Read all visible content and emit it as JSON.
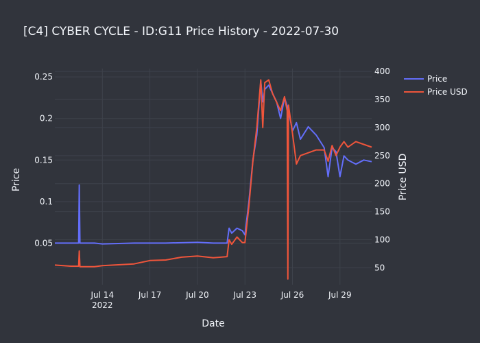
{
  "chart_data": {
    "type": "line",
    "title": "[C4] CYBER CYCLE - ID:G11 Price History - 2022-07-30",
    "xlabel": "Date",
    "ylabel": "Price",
    "y2label": "Price USD",
    "xlim": [
      "2022-07-11",
      "2022-07-31"
    ],
    "ylim": [
      0.0,
      0.26
    ],
    "y2lim": [
      20,
      405
    ],
    "x_ticks": [
      {
        "date": "2022-07-14",
        "label": "Jul 14",
        "sublabel": "2022"
      },
      {
        "date": "2022-07-17",
        "label": "Jul 17"
      },
      {
        "date": "2022-07-20",
        "label": "Jul 20"
      },
      {
        "date": "2022-07-23",
        "label": "Jul 23"
      },
      {
        "date": "2022-07-26",
        "label": "Jul 26"
      },
      {
        "date": "2022-07-29",
        "label": "Jul 29"
      }
    ],
    "y_ticks": [
      0.05,
      0.1,
      0.15,
      0.2,
      0.25
    ],
    "y_tick_labels": [
      "0.05",
      "0.1",
      "0.15",
      "0.2",
      "0.25"
    ],
    "y2_ticks": [
      50,
      100,
      150,
      200,
      250,
      300,
      350,
      400
    ],
    "y2_tick_labels": [
      "50",
      "100",
      "150",
      "200",
      "250",
      "300",
      "350",
      "400"
    ],
    "legend_position": "top-right",
    "grid": true,
    "series": [
      {
        "name": "Price",
        "axis": "y",
        "color": "#636efa",
        "points": [
          [
            "2022-07-11 00:00",
            0.05
          ],
          [
            "2022-07-12 00:00",
            0.05
          ],
          [
            "2022-07-12 12:00",
            0.05
          ],
          [
            "2022-07-12 13:00",
            0.12
          ],
          [
            "2022-07-12 14:00",
            0.05
          ],
          [
            "2022-07-13 12:00",
            0.05
          ],
          [
            "2022-07-14 00:00",
            0.049
          ],
          [
            "2022-07-16 00:00",
            0.05
          ],
          [
            "2022-07-18 00:00",
            0.05
          ],
          [
            "2022-07-20 00:00",
            0.051
          ],
          [
            "2022-07-21 00:00",
            0.05
          ],
          [
            "2022-07-21 21:00",
            0.05
          ],
          [
            "2022-07-22 00:00",
            0.068
          ],
          [
            "2022-07-22 04:00",
            0.062
          ],
          [
            "2022-07-22 12:00",
            0.068
          ],
          [
            "2022-07-22 20:00",
            0.065
          ],
          [
            "2022-07-23 00:00",
            0.06
          ],
          [
            "2022-07-23 06:00",
            0.1
          ],
          [
            "2022-07-23 12:00",
            0.15
          ],
          [
            "2022-07-23 18:00",
            0.18
          ],
          [
            "2022-07-24 00:00",
            0.245
          ],
          [
            "2022-07-24 03:00",
            0.22
          ],
          [
            "2022-07-24 06:00",
            0.235
          ],
          [
            "2022-07-24 12:00",
            0.24
          ],
          [
            "2022-07-24 18:00",
            0.23
          ],
          [
            "2022-07-25 00:00",
            0.22
          ],
          [
            "2022-07-25 06:00",
            0.2
          ],
          [
            "2022-07-25 12:00",
            0.225
          ],
          [
            "2022-07-25 18:00",
            0.21
          ],
          [
            "2022-07-26 00:00",
            0.185
          ],
          [
            "2022-07-26 06:00",
            0.195
          ],
          [
            "2022-07-26 12:00",
            0.175
          ],
          [
            "2022-07-27 00:00",
            0.19
          ],
          [
            "2022-07-27 12:00",
            0.18
          ],
          [
            "2022-07-28 00:00",
            0.165
          ],
          [
            "2022-07-28 06:00",
            0.13
          ],
          [
            "2022-07-28 12:00",
            0.165
          ],
          [
            "2022-07-28 18:00",
            0.16
          ],
          [
            "2022-07-29 00:00",
            0.13
          ],
          [
            "2022-07-29 06:00",
            0.155
          ],
          [
            "2022-07-29 12:00",
            0.15
          ],
          [
            "2022-07-30 00:00",
            0.145
          ],
          [
            "2022-07-30 12:00",
            0.15
          ],
          [
            "2022-07-31 00:00",
            0.148
          ]
        ]
      },
      {
        "name": "Price USD",
        "axis": "y2",
        "color": "#ef553b",
        "points": [
          [
            "2022-07-11 00:00",
            55
          ],
          [
            "2022-07-12 00:00",
            53
          ],
          [
            "2022-07-12 12:00",
            53
          ],
          [
            "2022-07-12 13:00",
            80
          ],
          [
            "2022-07-12 14:00",
            52
          ],
          [
            "2022-07-13 12:00",
            52
          ],
          [
            "2022-07-14 00:00",
            54
          ],
          [
            "2022-07-16 00:00",
            57
          ],
          [
            "2022-07-17 00:00",
            63
          ],
          [
            "2022-07-18 00:00",
            64
          ],
          [
            "2022-07-19 00:00",
            69
          ],
          [
            "2022-07-20 00:00",
            71
          ],
          [
            "2022-07-21 00:00",
            68
          ],
          [
            "2022-07-21 21:00",
            70
          ],
          [
            "2022-07-22 00:00",
            100
          ],
          [
            "2022-07-22 04:00",
            92
          ],
          [
            "2022-07-22 12:00",
            105
          ],
          [
            "2022-07-22 20:00",
            95
          ],
          [
            "2022-07-23 00:00",
            95
          ],
          [
            "2022-07-23 06:00",
            160
          ],
          [
            "2022-07-23 12:00",
            240
          ],
          [
            "2022-07-23 18:00",
            300
          ],
          [
            "2022-07-24 00:00",
            385
          ],
          [
            "2022-07-24 03:00",
            300
          ],
          [
            "2022-07-24 06:00",
            380
          ],
          [
            "2022-07-24 12:00",
            385
          ],
          [
            "2022-07-24 18:00",
            360
          ],
          [
            "2022-07-25 00:00",
            345
          ],
          [
            "2022-07-25 06:00",
            330
          ],
          [
            "2022-07-25 12:00",
            355
          ],
          [
            "2022-07-25 16:00",
            330
          ],
          [
            "2022-07-25 17:00",
            30
          ],
          [
            "2022-07-25 18:00",
            340
          ],
          [
            "2022-07-26 00:00",
            290
          ],
          [
            "2022-07-26 06:00",
            235
          ],
          [
            "2022-07-26 12:00",
            250
          ],
          [
            "2022-07-27 00:00",
            255
          ],
          [
            "2022-07-27 12:00",
            260
          ],
          [
            "2022-07-28 00:00",
            260
          ],
          [
            "2022-07-28 06:00",
            240
          ],
          [
            "2022-07-28 12:00",
            268
          ],
          [
            "2022-07-28 18:00",
            250
          ],
          [
            "2022-07-29 00:00",
            265
          ],
          [
            "2022-07-29 06:00",
            275
          ],
          [
            "2022-07-29 12:00",
            265
          ],
          [
            "2022-07-30 00:00",
            275
          ],
          [
            "2022-07-30 12:00",
            270
          ],
          [
            "2022-07-31 00:00",
            265
          ]
        ]
      }
    ]
  }
}
